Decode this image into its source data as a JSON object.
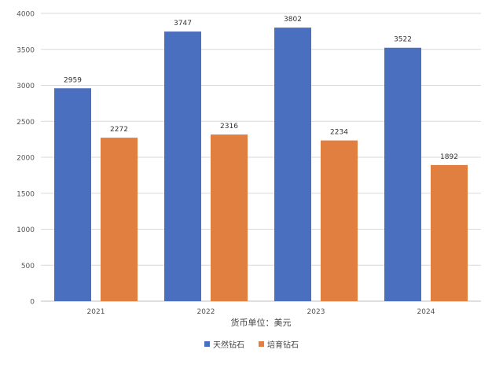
{
  "chart_data": {
    "type": "bar",
    "categories": [
      "2021",
      "2022",
      "2023",
      "2024"
    ],
    "series": [
      {
        "name": "天然钻石",
        "values": [
          2959,
          3747,
          3802,
          3522
        ],
        "color": "#4a6fbf"
      },
      {
        "name": "培育钻石",
        "values": [
          2272,
          2316,
          2234,
          1892
        ],
        "color": "#e07f3f"
      }
    ],
    "title": "",
    "xlabel": "货币单位：美元",
    "ylabel": "",
    "ylim": [
      0,
      4000
    ],
    "yticks": [
      0,
      500,
      1000,
      1500,
      2000,
      2500,
      3000,
      3500,
      4000
    ],
    "grid": true,
    "legend_position": "bottom-center"
  }
}
